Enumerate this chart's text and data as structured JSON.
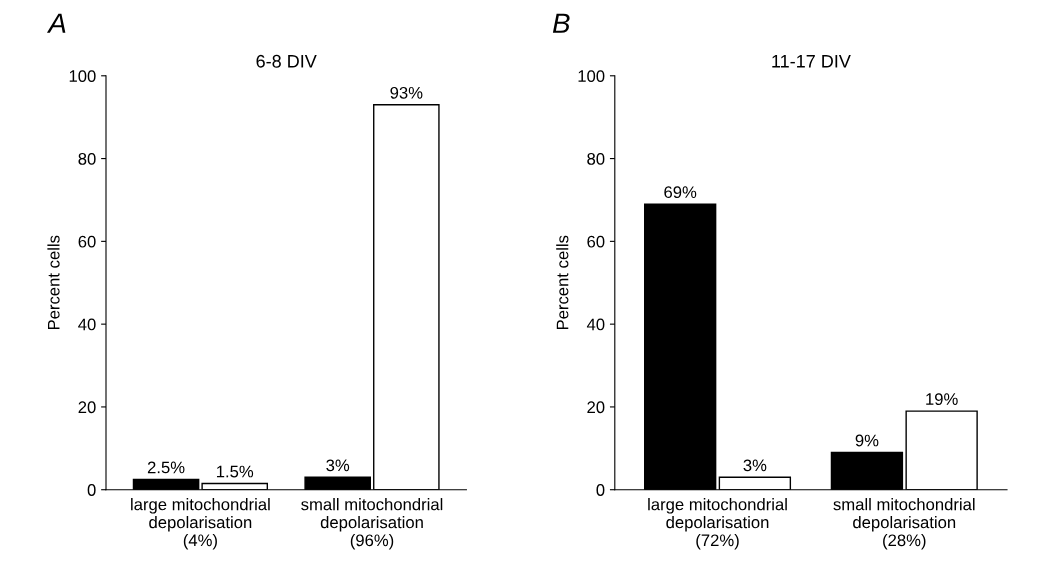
{
  "chart_data": [
    {
      "type": "bar",
      "title": "6-8 DIV",
      "ylabel": "Percent cells",
      "annotations": [
        "A"
      ],
      "categories": [
        "large mitochondrial\ndepolarisation\n(4%)",
        "small mitochondrial\ndepolarisation\n(96%)"
      ],
      "series": [
        {
          "color": "#000000",
          "values": [
            2.5,
            3
          ],
          "value_labels": [
            "2.5%",
            "3%"
          ]
        },
        {
          "color": "#ffffff",
          "values": [
            1.5,
            93
          ],
          "value_labels": [
            "1.5%",
            "93%"
          ]
        }
      ],
      "ylim": [
        0,
        100
      ],
      "yticks": [
        0,
        20,
        40,
        60,
        80,
        100
      ],
      "grid": false,
      "legend": false
    },
    {
      "type": "bar",
      "title": "11-17 DIV",
      "ylabel": "Percent cells",
      "annotations": [
        "B"
      ],
      "categories": [
        "large mitochondrial\ndepolarisation\n(72%)",
        "small mitochondrial\ndepolarisation\n(28%)"
      ],
      "series": [
        {
          "color": "#000000",
          "values": [
            69,
            9
          ],
          "value_labels": [
            "69%",
            "9%"
          ]
        },
        {
          "color": "#ffffff",
          "values": [
            3,
            19
          ],
          "value_labels": [
            "3%",
            "19%"
          ]
        }
      ],
      "ylim": [
        0,
        100
      ],
      "yticks": [
        0,
        20,
        40,
        60,
        80,
        100
      ],
      "grid": false,
      "legend": false
    }
  ]
}
